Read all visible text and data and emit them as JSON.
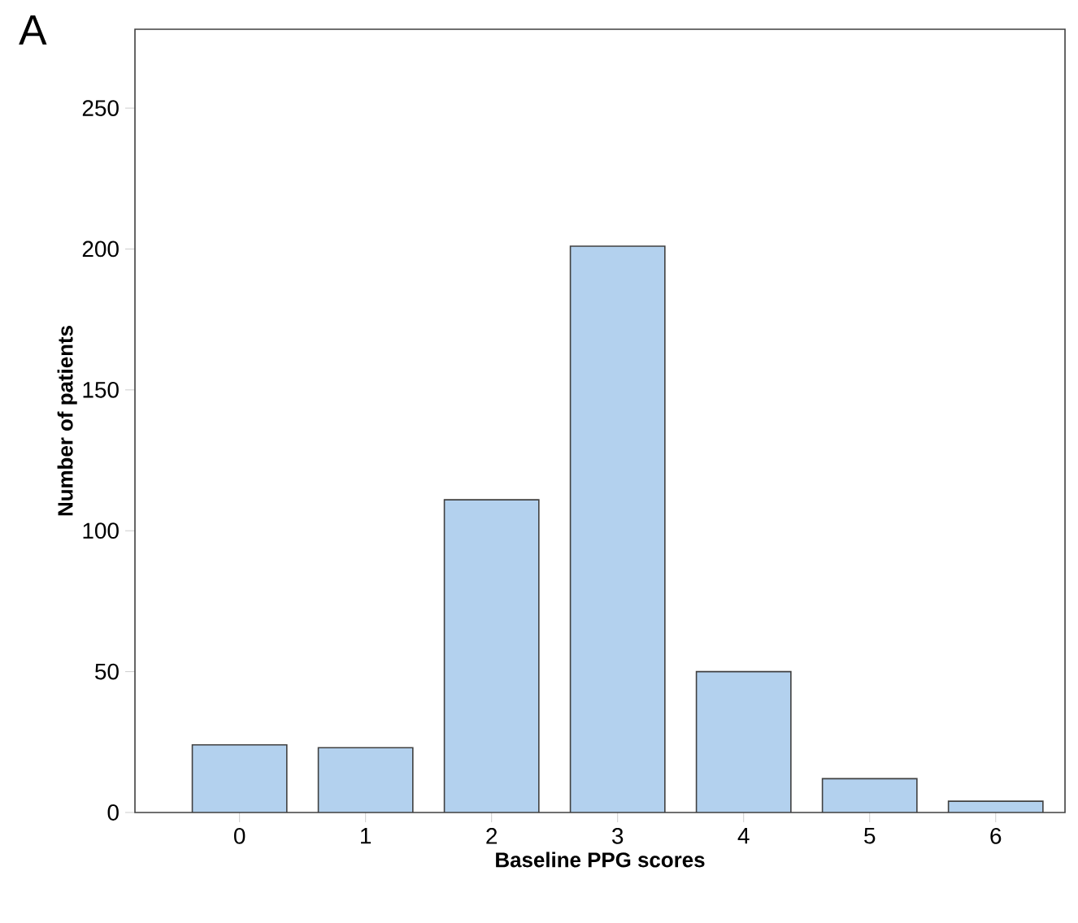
{
  "chart_data": {
    "type": "bar",
    "categories": [
      "0",
      "1",
      "2",
      "3",
      "4",
      "5",
      "6"
    ],
    "values": [
      24,
      23,
      111,
      201,
      50,
      12,
      4
    ],
    "color": "#b3d1ee",
    "xlabel": "Baseline PPG scores",
    "ylabel": "Number of patients",
    "ylim": [
      0,
      278
    ],
    "yticks": [
      0,
      50,
      100,
      150,
      200,
      250
    ],
    "grid": false,
    "annotations": [
      "A"
    ]
  }
}
